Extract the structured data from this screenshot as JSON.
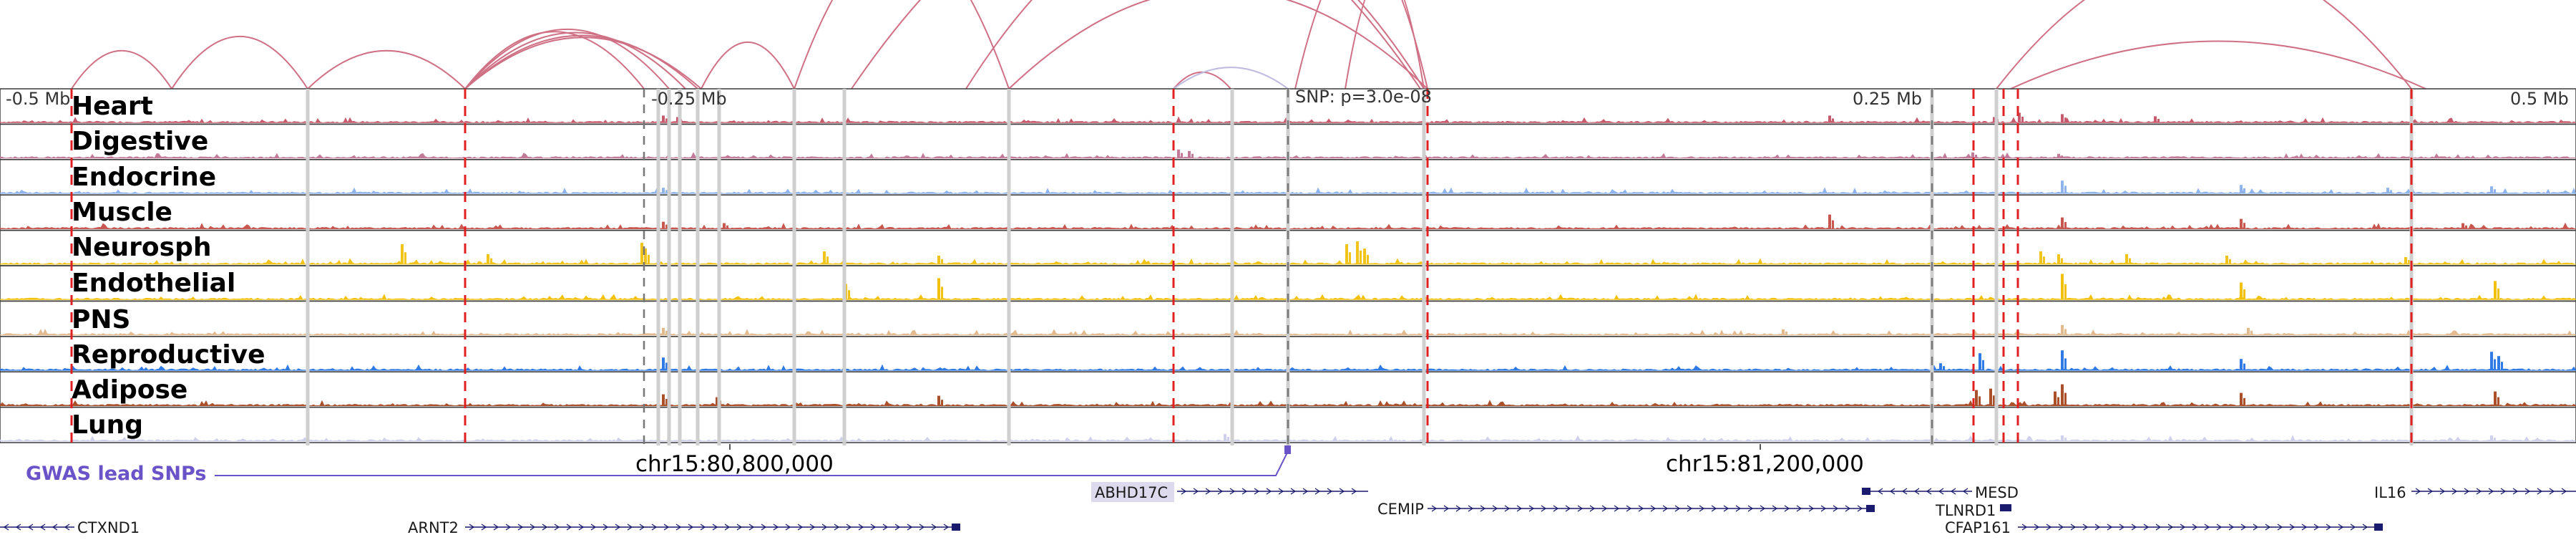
{
  "browser": {
    "axis": {
      "left": "-0.5 Mb",
      "mid_left": "-0.25 Mb",
      "snp": "SNP: p=3.0e-08",
      "mid_right": "0.25 Mb",
      "right": "0.5 Mb"
    },
    "coords": [
      "chr15:80,800,000",
      "chr15:81,200,000"
    ],
    "gwas_label": "GWAS lead SNPs",
    "colors": {
      "link": "#d07085",
      "link_light": "#c0bce0",
      "marker": "#e02020",
      "gwas": "#6a52c8",
      "gene": "#1a1a6e"
    },
    "tracks": [
      {
        "name": "Heart",
        "color": "#c85a6e"
      },
      {
        "name": "Digestive",
        "color": "#c27a98"
      },
      {
        "name": "Endocrine",
        "color": "#8fb4ec"
      },
      {
        "name": "Muscle",
        "color": "#c8574f"
      },
      {
        "name": "Neurosph",
        "color": "#f0c419"
      },
      {
        "name": "Endothelial",
        "color": "#f2c10d"
      },
      {
        "name": "PNS",
        "color": "#e3b98e"
      },
      {
        "name": "Reproductive",
        "color": "#2f7ae5"
      },
      {
        "name": "Adipose",
        "color": "#ab4f2b"
      },
      {
        "name": "Lung",
        "color": "#cfd0ec"
      }
    ],
    "genes": {
      "abhd17c": "ABHD17C",
      "mesd": "MESD",
      "il16": "IL16",
      "cemip": "CEMIP",
      "tlnrd1": "TLNRD1",
      "ctxnd1": "CTXND1",
      "arnt2": "ARNT2",
      "cfap161": "CFAP161"
    }
  }
}
